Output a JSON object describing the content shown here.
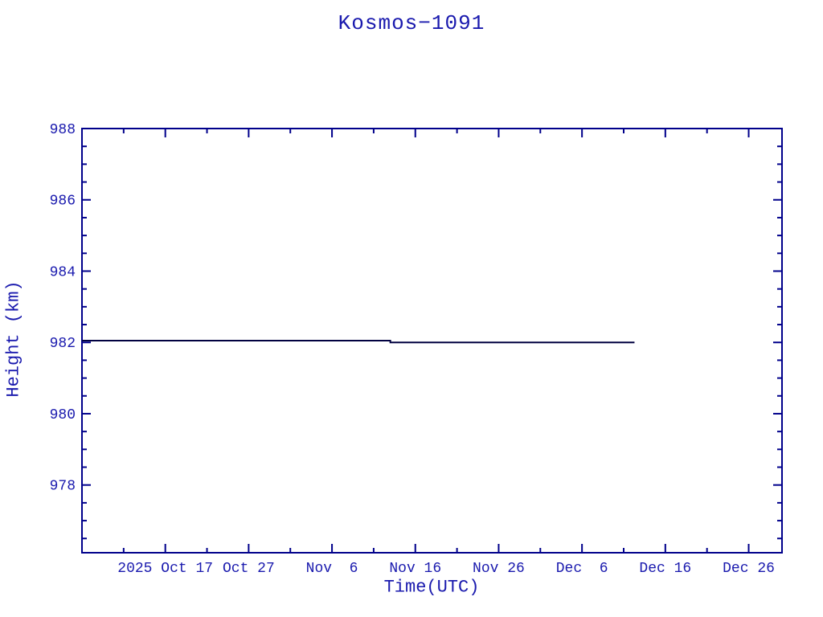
{
  "page": {
    "background_color": "#ffffff"
  },
  "chart": {
    "title": "Kosmos−1091",
    "xlabel": "Time(UTC)",
    "ylabel": "Height (km)"
  },
  "chart_data": {
    "type": "line",
    "title": "Kosmos−1091",
    "xlabel": "Time(UTC)",
    "ylabel": "Height (km)",
    "grid": false,
    "legend": false,
    "colors": {
      "frame": "#00008B",
      "tick": "#00008B",
      "label_text": "#1a1aae",
      "series_line": "#000040"
    },
    "x_axis": {
      "unit": "days from left edge of axis",
      "range_days": [
        0,
        84
      ],
      "major_ticks": [
        {
          "day": 10,
          "label": "2025 Oct 17"
        },
        {
          "day": 20,
          "label": "Oct 27"
        },
        {
          "day": 30,
          "label": "Nov  6"
        },
        {
          "day": 40,
          "label": "Nov 16"
        },
        {
          "day": 50,
          "label": "Nov 26"
        },
        {
          "day": 60,
          "label": "Dec  6"
        },
        {
          "day": 70,
          "label": "Dec 16"
        },
        {
          "day": 80,
          "label": "Dec 26"
        }
      ],
      "minor_tick_days": [
        5,
        15,
        25,
        35,
        45,
        55,
        65,
        75
      ]
    },
    "y_axis": {
      "range_km": [
        976.1,
        988.0
      ],
      "major_ticks_km": [
        978,
        980,
        982,
        984,
        986,
        988
      ],
      "major_tick_labels": [
        "978",
        "980",
        "982",
        "984",
        "986",
        "988"
      ],
      "minor_ticks_km": [
        976.5,
        977.0,
        977.5,
        978.5,
        979.0,
        979.5,
        980.5,
        981.0,
        981.5,
        982.5,
        983.0,
        983.5,
        984.5,
        985.0,
        985.5,
        986.5,
        987.0,
        987.5
      ]
    },
    "series": [
      {
        "name": "height-km",
        "color": "#000040",
        "points_day_km": [
          [
            0.0,
            982.05
          ],
          [
            37.0,
            982.05
          ],
          [
            37.0,
            982.0
          ],
          [
            66.3,
            982.0
          ]
        ]
      }
    ]
  }
}
